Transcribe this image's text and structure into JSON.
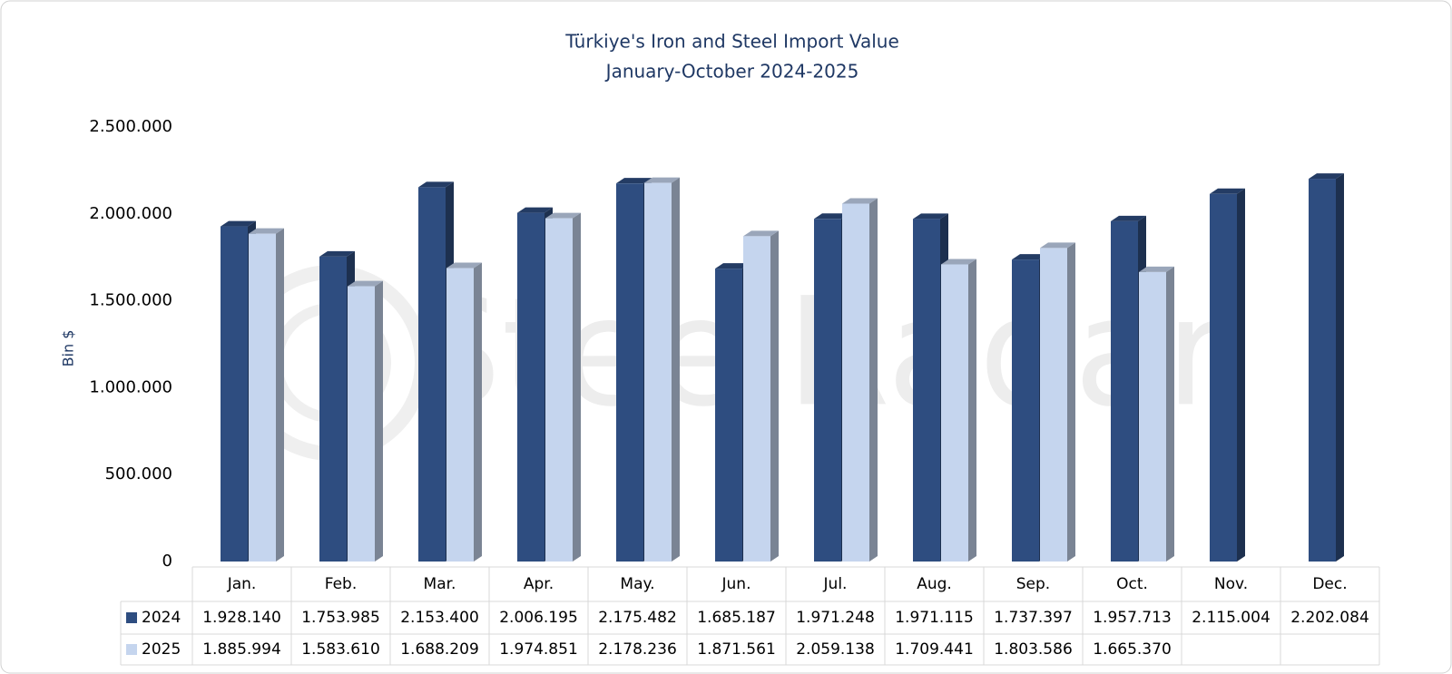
{
  "chart_data": {
    "type": "bar3d",
    "title": "Türkiye's Iron and Steel Import Value",
    "subtitle": "January-October 2024-2025",
    "y_label": "Bin $",
    "watermark": "SteelRadar",
    "categories": [
      "Jan.",
      "Feb.",
      "Mar.",
      "Apr.",
      "May.",
      "Jun.",
      "Jul.",
      "Aug.",
      "Sep.",
      "Oct.",
      "Nov.",
      "Dec."
    ],
    "series": [
      {
        "name": "2024",
        "color": "#2e4d80",
        "values": [
          1928140,
          1753985,
          2153400,
          2006195,
          2175482,
          1685187,
          1971248,
          1971115,
          1737397,
          1957713,
          2115004,
          2202084
        ],
        "value_labels": [
          "1.928.140",
          "1.753.985",
          "2.153.400",
          "2.006.195",
          "2.175.482",
          "1.685.187",
          "1.971.248",
          "1.971.115",
          "1.737.397",
          "1.957.713",
          "2.115.004",
          "2.202.084"
        ]
      },
      {
        "name": "2025",
        "color": "#c5d5ee",
        "values": [
          1885994,
          1583610,
          1688209,
          1974851,
          2178236,
          1871561,
          2059138,
          1709441,
          1803586,
          1665370,
          null,
          null
        ],
        "value_labels": [
          "1.885.994",
          "1.583.610",
          "1.688.209",
          "1.974.851",
          "2.178.236",
          "1.871.561",
          "2.059.138",
          "1.709.441",
          "1.803.586",
          "1.665.370",
          null,
          null
        ]
      }
    ],
    "ylim": [
      0,
      2500000
    ],
    "yticks": [
      0,
      {
        "value": 500000,
        "label": "500.000"
      },
      {
        "value": 1000000,
        "label": "1.000.000"
      },
      {
        "value": 1500000,
        "label": "1.500.000"
      },
      {
        "value": 2000000,
        "label": "2.000.000"
      },
      {
        "value": 2500000,
        "label": "2.500.000"
      }
    ],
    "grid": false
  }
}
